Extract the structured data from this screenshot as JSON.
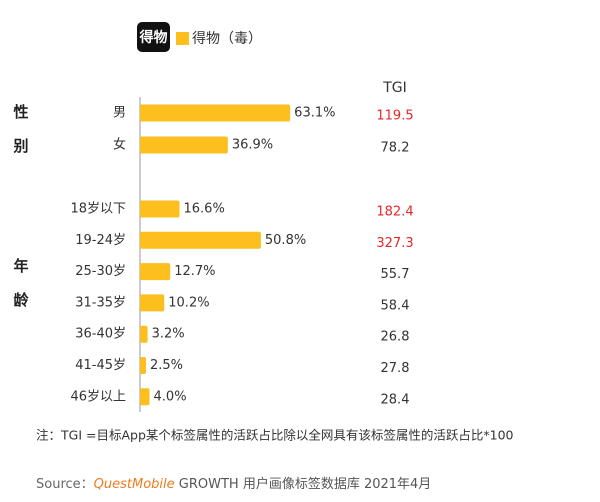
{
  "chart_data": {
    "type": "bar",
    "logo_text": "得物",
    "groups": [
      "性别",
      "年龄"
    ],
    "categories": [
      "男",
      "女",
      "18岁以下",
      "19-24岁",
      "25-30岁",
      "31-35岁",
      "36-40岁",
      "41-45岁",
      "46岁以上"
    ],
    "series": [
      {
        "name": "得物（毒）",
        "color": "#fdbf1e",
        "values": [
          63.1,
          36.9,
          16.6,
          50.8,
          12.7,
          10.2,
          3.2,
          2.5,
          4.0
        ],
        "value_labels": [
          "63.1%",
          "36.9%",
          "16.6%",
          "50.8%",
          "12.7%",
          "10.2%",
          "3.2%",
          "2.5%",
          "4.0%"
        ]
      }
    ],
    "tgi": {
      "title": "TGI",
      "values": [
        119.5,
        78.2,
        182.4,
        327.3,
        55.7,
        58.4,
        26.8,
        27.8,
        28.4
      ],
      "colors": [
        "#e8262a",
        "#333333",
        "#e8262a",
        "#e8262a",
        "#333333",
        "#333333",
        "#333333",
        "#333333",
        "#333333"
      ]
    },
    "note": "注：TGI =目标App某个标签属性的活跃占比除以全网具有该标签属性的活跃占比*100",
    "source_label": "Source：",
    "source_brand": "QuestMobile",
    "source_text": " GROWTH 用户画像标签数据库 2021年4月"
  }
}
